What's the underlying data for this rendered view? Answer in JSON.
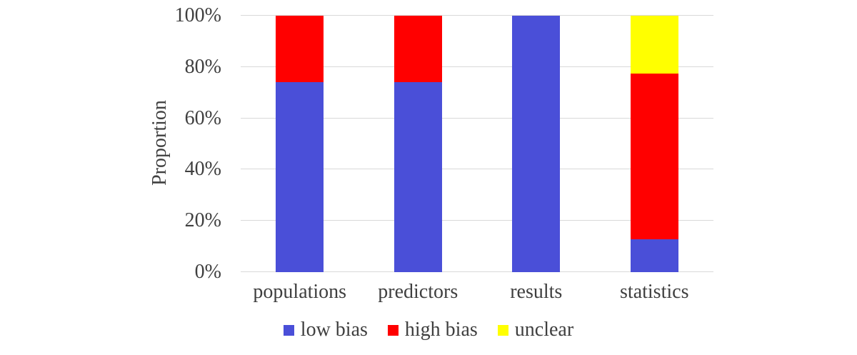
{
  "chart_data": {
    "type": "bar",
    "stacked": true,
    "orientation": "vertical",
    "title": "",
    "xlabel": "",
    "ylabel": "Proportion",
    "categories": [
      "populations",
      "predictors",
      "results",
      "statistics"
    ],
    "series": [
      {
        "name": "low bias",
        "color": "#4A4FD8",
        "values": [
          74.2,
          74.2,
          100,
          12.9
        ]
      },
      {
        "name": "high bias",
        "color": "#FF0000",
        "values": [
          25.8,
          25.8,
          0,
          64.5
        ]
      },
      {
        "name": "unclear",
        "color": "#FFFF00",
        "values": [
          0,
          0,
          0,
          22.6
        ]
      }
    ],
    "y_ticks": [
      "0%",
      "20%",
      "40%",
      "60%",
      "80%",
      "100%"
    ],
    "ylim": [
      0,
      100
    ],
    "grid": "horizontal",
    "legend_position": "bottom"
  },
  "colors": {
    "grid": "#D9D9D9",
    "axis_text": "#3F3F3F",
    "background": "#FFFFFF"
  }
}
